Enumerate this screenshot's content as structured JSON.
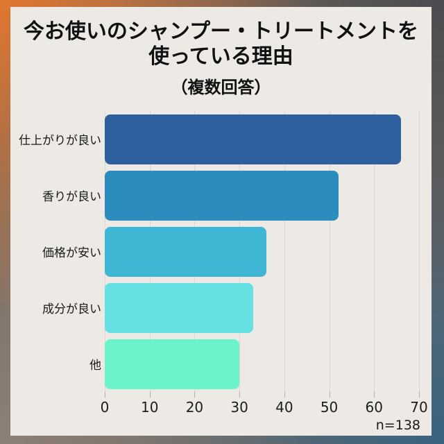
{
  "colors": {
    "frame_top_left": "#e0762f",
    "frame_top_right": "#4b4c51",
    "frame_bottom_left": "#8b8077",
    "frame_bottom_right": "#386481",
    "card_background": "#edeae5",
    "gridline": "#dbd7d0"
  },
  "title": {
    "line1": "今お使いのシャンプー・トリートメントを",
    "line2": "使っている理由",
    "note": "（複数回答）"
  },
  "sample_size_label": "n=138",
  "chart_data": {
    "type": "bar",
    "orientation": "horizontal",
    "title": "今お使いのシャンプー・トリートメントを使っている理由（複数回答）",
    "categories": [
      "仕上がりが良い",
      "香りが良い",
      "価格が安い",
      "成分が良い",
      "他"
    ],
    "values": [
      66,
      52,
      36,
      33,
      30
    ],
    "bar_colors": [
      "#2e5f9e",
      "#2d8cbe",
      "#3fb6d4",
      "#65e0e3",
      "#6df3cb"
    ],
    "xlim": [
      0,
      70
    ],
    "x_ticks": [
      0,
      10,
      20,
      30,
      40,
      50,
      60,
      70
    ],
    "grid": "vertical",
    "legend": "none",
    "annotation": "n=138"
  }
}
